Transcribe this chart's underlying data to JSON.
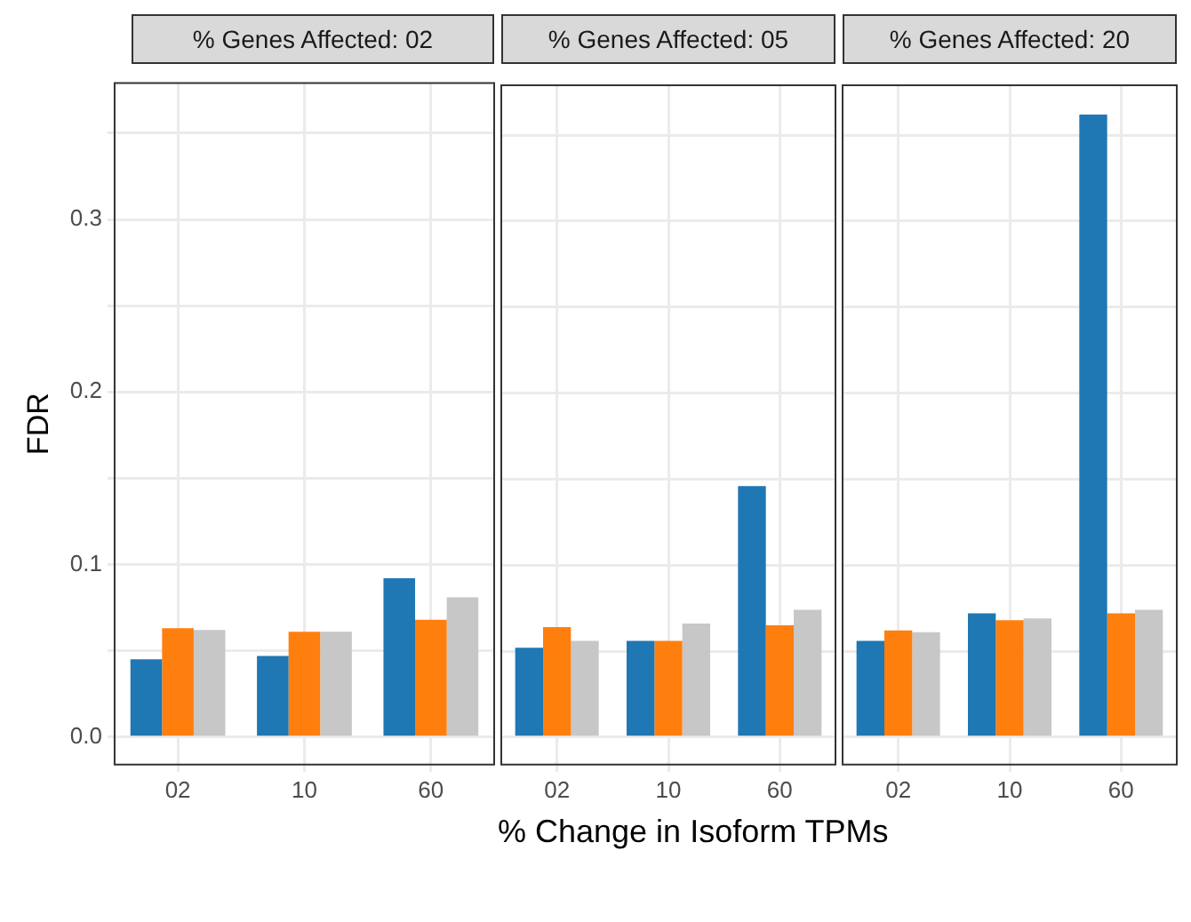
{
  "chart_data": [
    {
      "type": "bar",
      "title": "% Genes Affected: 02",
      "ylabel": "FDR",
      "categories": [
        "02",
        "10",
        "60"
      ],
      "series": [
        {
          "color": "#1f77b4",
          "values": [
            0.045,
            0.047,
            0.092
          ]
        },
        {
          "color": "#ff7f0e",
          "values": [
            0.063,
            0.061,
            0.068
          ]
        },
        {
          "color": "#c7c7c7",
          "values": [
            0.062,
            0.061,
            0.081
          ]
        }
      ],
      "ylim": [
        -0.016,
        0.379
      ],
      "yticks": [
        {
          "value": 0,
          "label": "0.0"
        },
        {
          "value": 0.05,
          "label": null
        },
        0.1,
        {
          "value": 0.15,
          "label": null
        },
        0.2,
        {
          "value": 0.25,
          "label": null
        },
        0.3,
        {
          "value": 0.35,
          "label": null
        }
      ],
      "grid": true,
      "legend": false
    },
    {
      "type": "bar",
      "title": "% Genes Affected: 05",
      "xlabel": "% Change in Isoform TPMs",
      "categories": [
        "02",
        "10",
        "60"
      ],
      "series": [
        {
          "color": "#1f77b4",
          "values": [
            0.052,
            0.056,
            0.146
          ]
        },
        {
          "color": "#ff7f0e",
          "values": [
            0.064,
            0.056,
            0.065
          ]
        },
        {
          "color": "#c7c7c7",
          "values": [
            0.056,
            0.066,
            0.074
          ]
        }
      ],
      "ylim": [
        -0.016,
        0.379
      ],
      "yticks": [
        0,
        {
          "value": 0.05,
          "label": null
        },
        0.1,
        {
          "value": 0.15,
          "label": null
        },
        0.2,
        {
          "value": 0.25,
          "label": null
        },
        0.3,
        {
          "value": 0.35,
          "label": null
        }
      ],
      "grid": true,
      "legend": false,
      "tick_labels": "x"
    },
    {
      "type": "bar",
      "title": "% Genes Affected: 20",
      "categories": [
        "02",
        "10",
        "60"
      ],
      "series": [
        {
          "color": "#1f77b4",
          "values": [
            0.056,
            0.072,
            0.362
          ]
        },
        {
          "color": "#ff7f0e",
          "values": [
            0.062,
            0.068,
            0.072
          ]
        },
        {
          "color": "#c7c7c7",
          "values": [
            0.061,
            0.069,
            0.074
          ]
        }
      ],
      "ylim": [
        -0.016,
        0.379
      ],
      "yticks": [
        0,
        {
          "value": 0.05,
          "label": null
        },
        0.1,
        {
          "value": 0.15,
          "label": null
        },
        0.2,
        {
          "value": 0.25,
          "label": null
        },
        0.3,
        {
          "value": 0.35,
          "label": null
        }
      ],
      "grid": true,
      "legend": false,
      "tick_labels": "x"
    }
  ]
}
